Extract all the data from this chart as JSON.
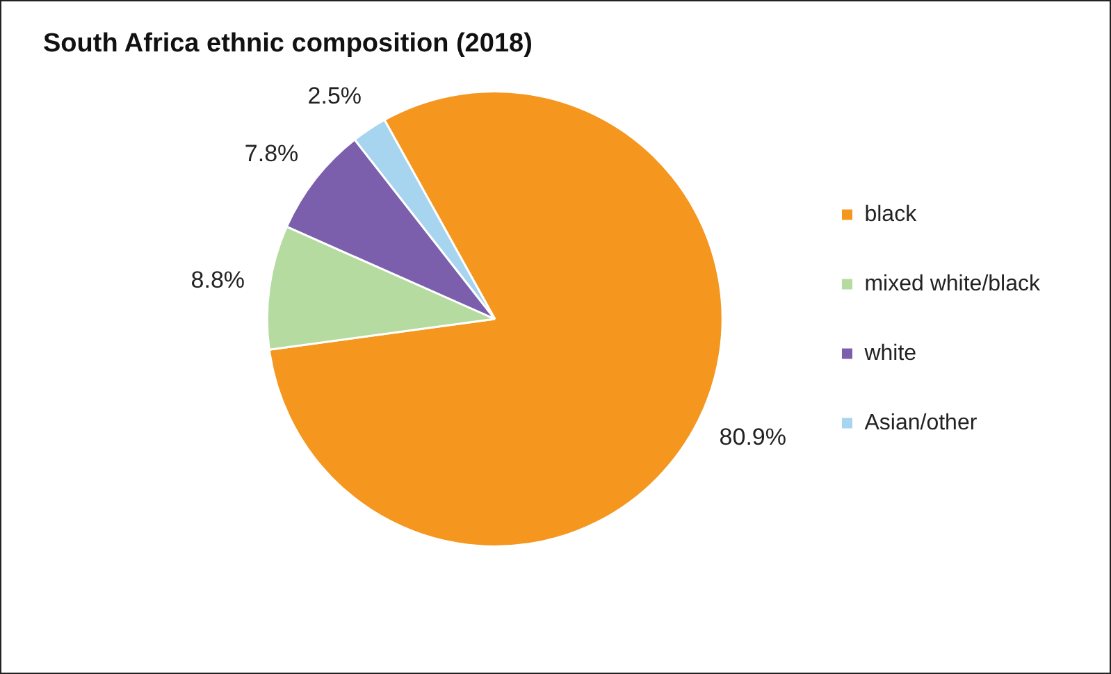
{
  "chart_data": {
    "type": "pie",
    "title": "South Africa ethnic composition (2018)",
    "categories": [
      "black",
      "mixed white/black",
      "white",
      "Asian/other"
    ],
    "values": [
      80.9,
      8.8,
      7.8,
      2.5
    ],
    "colors": [
      "#f5961f",
      "#b5dba1",
      "#7b5fac",
      "#a7d4ef"
    ],
    "value_labels": [
      "80.9%",
      "8.8%",
      "7.8%",
      "2.5%"
    ],
    "legend": "right"
  }
}
